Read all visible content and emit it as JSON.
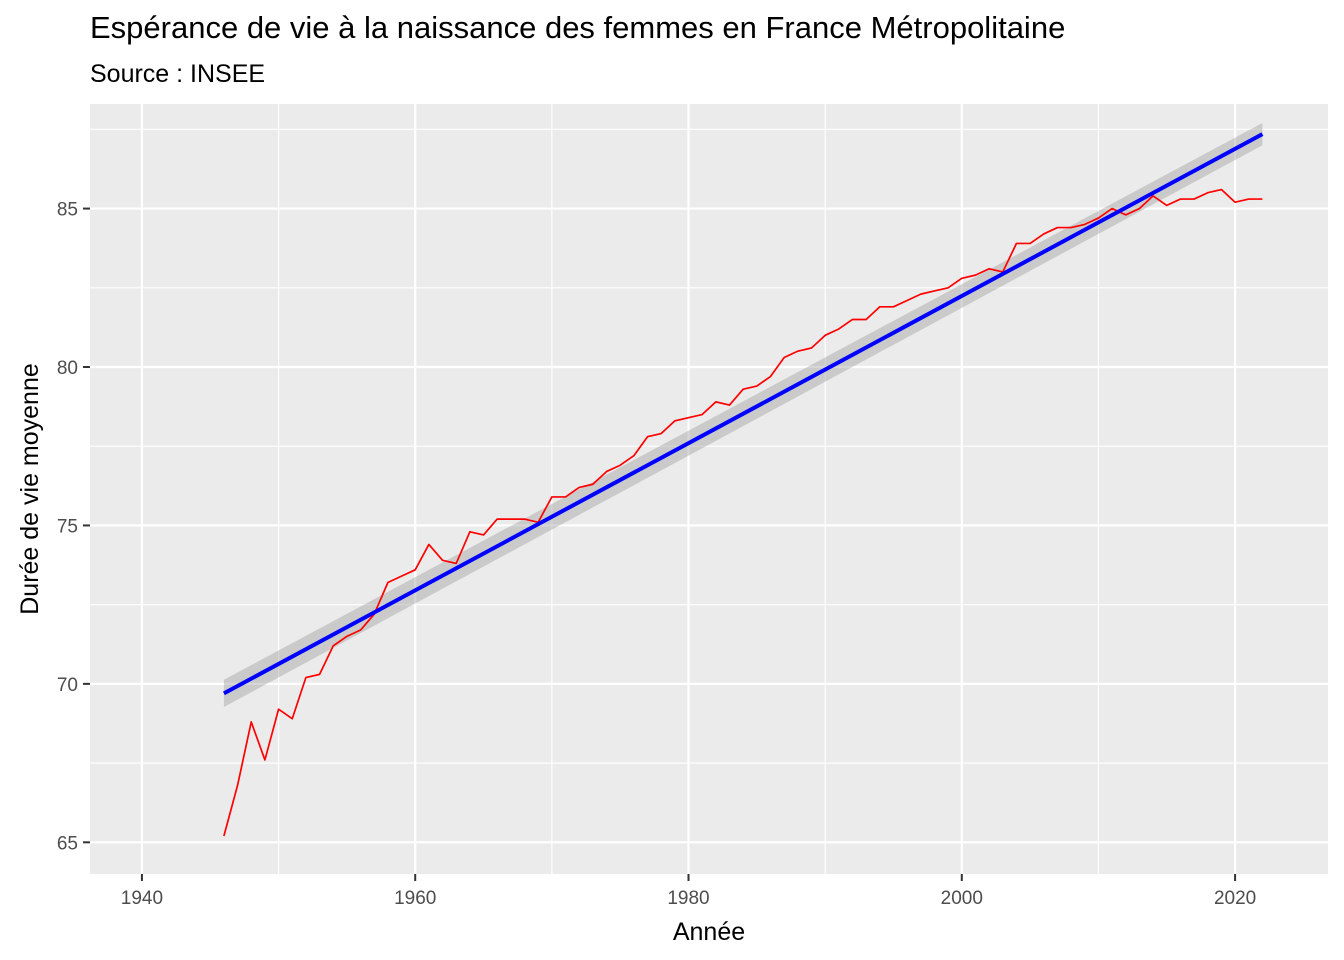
{
  "chart_data": {
    "type": "line",
    "title": "Espérance de vie à la naissance des femmes en France Métropolitaine",
    "subtitle": "Source : INSEE",
    "xlabel": "Année",
    "ylabel": "Durée de vie moyenne",
    "xlim": [
      1936.2,
      2026.8
    ],
    "ylim": [
      64.0,
      88.3
    ],
    "x_ticks": [
      1940,
      1960,
      1980,
      2000,
      2020
    ],
    "y_ticks": [
      65,
      70,
      75,
      80,
      85
    ],
    "grid": true,
    "series": [
      {
        "color": "#ff0000",
        "x": [
          1946,
          1947,
          1948,
          1949,
          1950,
          1951,
          1952,
          1953,
          1954,
          1955,
          1956,
          1957,
          1958,
          1959,
          1960,
          1961,
          1962,
          1963,
          1964,
          1965,
          1966,
          1967,
          1968,
          1969,
          1970,
          1971,
          1972,
          1973,
          1974,
          1975,
          1976,
          1977,
          1978,
          1979,
          1980,
          1981,
          1982,
          1983,
          1984,
          1985,
          1986,
          1987,
          1988,
          1989,
          1990,
          1991,
          1992,
          1993,
          1994,
          1995,
          1996,
          1997,
          1998,
          1999,
          2000,
          2001,
          2002,
          2003,
          2004,
          2005,
          2006,
          2007,
          2008,
          2009,
          2010,
          2011,
          2012,
          2013,
          2014,
          2015,
          2016,
          2017,
          2018,
          2019,
          2020,
          2021,
          2022
        ],
        "y": [
          65.2,
          66.8,
          68.8,
          67.6,
          69.2,
          68.9,
          70.2,
          70.3,
          71.2,
          71.5,
          71.7,
          72.2,
          73.2,
          73.4,
          73.6,
          74.4,
          73.9,
          73.8,
          74.8,
          74.7,
          75.2,
          75.2,
          75.2,
          75.1,
          75.9,
          75.9,
          76.2,
          76.3,
          76.7,
          76.9,
          77.2,
          77.8,
          77.9,
          78.3,
          78.4,
          78.5,
          78.9,
          78.8,
          79.3,
          79.4,
          79.7,
          80.3,
          80.5,
          80.6,
          81.0,
          81.2,
          81.5,
          81.5,
          81.9,
          81.9,
          82.1,
          82.3,
          82.4,
          82.5,
          82.8,
          82.9,
          83.1,
          83.0,
          83.9,
          83.9,
          84.2,
          84.4,
          84.4,
          84.5,
          84.7,
          85.0,
          84.8,
          85.0,
          85.4,
          85.1,
          85.3,
          85.3,
          85.5,
          85.6,
          85.2,
          85.3,
          85.3
        ]
      },
      {
        "color": "#0000ff",
        "x": [
          1946,
          2022
        ],
        "y": [
          69.7,
          87.35
        ],
        "band_lower": [
          69.27,
          87.0
        ],
        "band_upper": [
          70.13,
          87.7
        ]
      }
    ]
  }
}
